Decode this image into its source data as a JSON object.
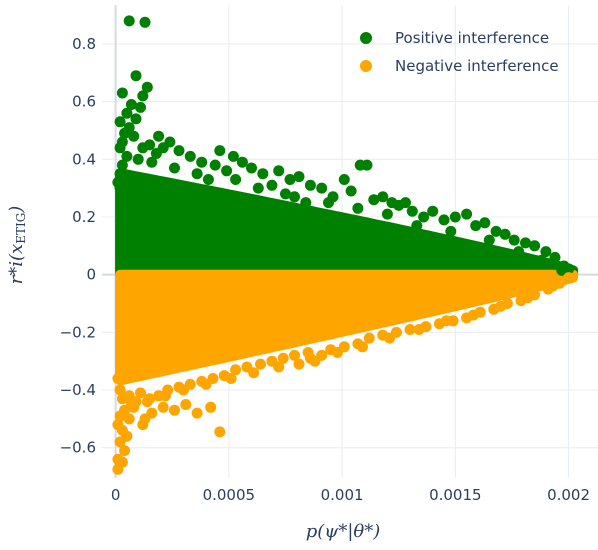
{
  "chart_data": {
    "type": "scatter",
    "title": "",
    "xlabel": "p(ψ*|θ*)",
    "ylabel": "r*i(xETIG)",
    "xlim": [
      -6e-05,
      0.00213
    ],
    "ylim": [
      -0.705,
      0.935
    ],
    "grid": true,
    "legend_position": "top-right",
    "x_ticks": [
      0,
      0.0005,
      0.001,
      0.0015,
      0.002
    ],
    "x_tick_labels": [
      "0",
      "0.0005",
      "0.001",
      "0.0015",
      "0.002"
    ],
    "y_ticks": [
      -0.6,
      -0.4,
      -0.2,
      0,
      0.2,
      0.4,
      0.6,
      0.8
    ],
    "y_tick_labels": [
      "−0.6",
      "−0.4",
      "−0.2",
      "0",
      "0.2",
      "0.4",
      "0.6",
      "0.8"
    ],
    "series": [
      {
        "name": "Positive interference",
        "color": "#008000",
        "points": [
          [
            6e-05,
            0.88
          ],
          [
            0.00013,
            0.875
          ],
          [
            9e-05,
            0.69
          ],
          [
            0.00014,
            0.65
          ],
          [
            0.00012,
            0.62
          ],
          [
            3e-05,
            0.63
          ],
          [
            7e-05,
            0.59
          ],
          [
            0.00011,
            0.58
          ],
          [
            5e-05,
            0.56
          ],
          [
            9e-05,
            0.54
          ],
          [
            2e-05,
            0.53
          ],
          [
            6e-05,
            0.51
          ],
          [
            4e-05,
            0.49
          ],
          [
            8e-05,
            0.48
          ],
          [
            3e-05,
            0.46
          ],
          [
            0.00015,
            0.45
          ],
          [
            0.00019,
            0.48
          ],
          [
            0.00024,
            0.46
          ],
          [
            0.00012,
            0.44
          ],
          [
            2e-05,
            0.44
          ],
          [
            0.00021,
            0.44
          ],
          [
            0.00028,
            0.43
          ],
          [
            0.00033,
            0.41
          ],
          [
            0.00018,
            0.42
          ],
          [
            0.00046,
            0.43
          ],
          [
            0.00052,
            0.41
          ],
          [
            0.00056,
            0.39
          ],
          [
            0.00038,
            0.39
          ],
          [
            0.00044,
            0.38
          ],
          [
            0.0006,
            0.37
          ],
          [
            0.00049,
            0.36
          ],
          [
            0.00065,
            0.35
          ],
          [
            0.00072,
            0.36
          ],
          [
            0.00053,
            0.33
          ],
          [
            0.00036,
            0.35
          ],
          [
            0.00077,
            0.33
          ],
          [
            0.00081,
            0.34
          ],
          [
            0.00086,
            0.31
          ],
          [
            0.00069,
            0.31
          ],
          [
            0.00075,
            0.28
          ],
          [
            0.00091,
            0.3
          ],
          [
            0.00096,
            0.27
          ],
          [
            0.00104,
            0.29
          ],
          [
            0.00108,
            0.38
          ],
          [
            0.00111,
            0.38
          ],
          [
            0.00101,
            0.33
          ],
          [
            0.00114,
            0.26
          ],
          [
            0.00118,
            0.27
          ],
          [
            0.00122,
            0.25
          ],
          [
            0.00084,
            0.25
          ],
          [
            0.00125,
            0.24
          ],
          [
            0.00131,
            0.22
          ],
          [
            0.00128,
            0.25
          ],
          [
            0.0014,
            0.22
          ],
          [
            0.00136,
            0.2
          ],
          [
            0.00145,
            0.19
          ],
          [
            0.0015,
            0.2
          ],
          [
            0.00155,
            0.21
          ],
          [
            0.00159,
            0.17
          ],
          [
            0.00163,
            0.18
          ],
          [
            0.00168,
            0.15
          ],
          [
            0.00172,
            0.14
          ],
          [
            0.00176,
            0.12
          ],
          [
            0.00181,
            0.11
          ],
          [
            0.00185,
            0.1
          ],
          [
            0.0019,
            0.08
          ],
          [
            0.00194,
            0.06
          ],
          [
            0.00198,
            0.03
          ],
          [
            0.002,
            0.02
          ],
          [
            0.00197,
            0.015
          ],
          [
            0.00188,
            0.05
          ],
          [
            0.00178,
            0.08
          ],
          [
            0.00165,
            0.12
          ],
          [
            0.00148,
            0.15
          ],
          [
            0.00133,
            0.17
          ],
          [
            0.0012,
            0.21
          ],
          [
            0.00107,
            0.23
          ],
          [
            0.00094,
            0.25
          ],
          [
            0.00079,
            0.27
          ],
          [
            0.00063,
            0.3
          ],
          [
            0.00041,
            0.33
          ],
          [
            0.00026,
            0.37
          ],
          [
            0.00016,
            0.39
          ],
          [
            0.0001,
            0.4
          ],
          [
            5e-05,
            0.41
          ],
          [
            3e-05,
            0.38
          ],
          [
            2e-05,
            0.35
          ],
          [
            1e-05,
            0.32
          ],
          [
            2e-05,
            0.3
          ],
          [
            4e-05,
            0.27
          ],
          [
            7e-05,
            0.25
          ]
        ]
      },
      {
        "name": "Negative interference",
        "color": "#ffa500",
        "points": [
          [
            1e-05,
            -0.675
          ],
          [
            3e-05,
            -0.65
          ],
          [
            1e-05,
            -0.64
          ],
          [
            4e-05,
            -0.61
          ],
          [
            2e-05,
            -0.58
          ],
          [
            5e-05,
            -0.56
          ],
          [
            3e-05,
            -0.54
          ],
          [
            1e-05,
            -0.52
          ],
          [
            6e-05,
            -0.5
          ],
          [
            2e-05,
            -0.49
          ],
          [
            4e-05,
            -0.47
          ],
          [
            0.00012,
            -0.52
          ],
          [
            0.00013,
            -0.5
          ],
          [
            8e-05,
            -0.46
          ],
          [
            0.00016,
            -0.48
          ],
          [
            0.00021,
            -0.46
          ],
          [
            0.00026,
            -0.47
          ],
          [
            0.00031,
            -0.45
          ],
          [
            0.00036,
            -0.48
          ],
          [
            0.00042,
            -0.46
          ],
          [
            0.00046,
            -0.545
          ],
          [
            9e-05,
            -0.44
          ],
          [
            0.00015,
            -0.43
          ],
          [
            0.00019,
            -0.42
          ],
          [
            0.00023,
            -0.4
          ],
          [
            0.00011,
            -0.41
          ],
          [
            6e-05,
            -0.42
          ],
          [
            3e-05,
            -0.43
          ],
          [
            0.00028,
            -0.39
          ],
          [
            0.00033,
            -0.38
          ],
          [
            0.00038,
            -0.37
          ],
          [
            0.00043,
            -0.36
          ],
          [
            0.00048,
            -0.35
          ],
          [
            0.00053,
            -0.33
          ],
          [
            0.00058,
            -0.32
          ],
          [
            0.00064,
            -0.31
          ],
          [
            0.00069,
            -0.3
          ],
          [
            0.00074,
            -0.29
          ],
          [
            0.00079,
            -0.28
          ],
          [
            0.00085,
            -0.27
          ],
          [
            0.00091,
            -0.28
          ],
          [
            0.00095,
            -0.26
          ],
          [
            0.00088,
            -0.3
          ],
          [
            0.00081,
            -0.31
          ],
          [
            0.00101,
            -0.25
          ],
          [
            0.00107,
            -0.24
          ],
          [
            0.00112,
            -0.22
          ],
          [
            0.00118,
            -0.21
          ],
          [
            0.00124,
            -0.2
          ],
          [
            0.0013,
            -0.19
          ],
          [
            0.00137,
            -0.18
          ],
          [
            0.00143,
            -0.17
          ],
          [
            0.00149,
            -0.16
          ],
          [
            0.00155,
            -0.15
          ],
          [
            0.00161,
            -0.13
          ],
          [
            0.00167,
            -0.12
          ],
          [
            0.00173,
            -0.1
          ],
          [
            0.00179,
            -0.09
          ],
          [
            0.00185,
            -0.07
          ],
          [
            0.00191,
            -0.05
          ],
          [
            0.00196,
            -0.03
          ],
          [
            0.002,
            -0.01
          ],
          [
            0.00193,
            -0.04
          ],
          [
            0.00182,
            -0.08
          ],
          [
            0.0017,
            -0.11
          ],
          [
            0.00158,
            -0.14
          ],
          [
            0.00146,
            -0.16
          ],
          [
            0.00134,
            -0.19
          ],
          [
            0.00121,
            -0.22
          ],
          [
            0.00109,
            -0.25
          ],
          [
            0.00098,
            -0.27
          ],
          [
            0.00086,
            -0.29
          ],
          [
            0.00072,
            -0.32
          ],
          [
            0.00061,
            -0.34
          ],
          [
            0.00051,
            -0.36
          ],
          [
            0.0004,
            -0.38
          ],
          [
            0.0003,
            -0.4
          ],
          [
            0.00022,
            -0.42
          ],
          [
            0.00014,
            -0.44
          ],
          [
            7e-05,
            -0.45
          ],
          [
            2e-05,
            -0.4
          ],
          [
            1e-05,
            -0.36
          ]
        ]
      }
    ]
  },
  "legend": {
    "items": [
      {
        "label": "Positive interference",
        "color": "#008000"
      },
      {
        "label": "Negative interference",
        "color": "#ffa500"
      }
    ]
  },
  "axis_titles": {
    "x": {
      "main": "p(ψ*|θ*)"
    },
    "y": {
      "main": "r*i(x",
      "sub": "ETIG",
      "close": ")"
    }
  }
}
